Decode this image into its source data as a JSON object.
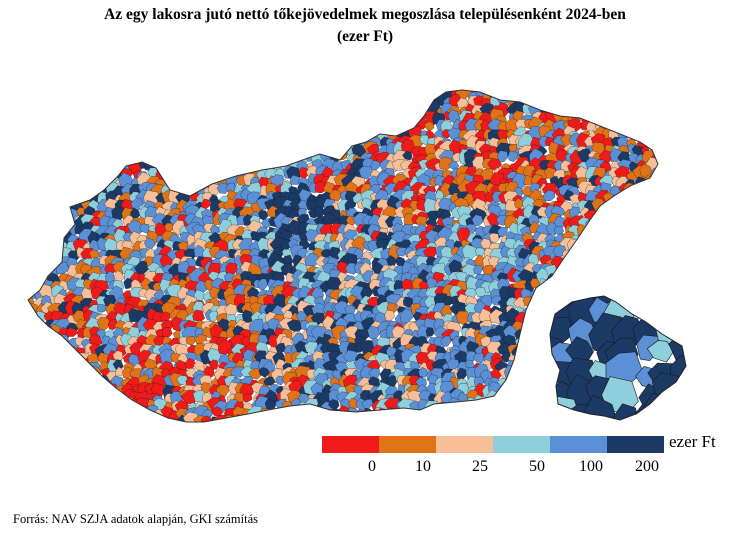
{
  "title": {
    "line1": "Az egy lakosra jutó nettó tőkejövedelmek megoszlása településenként 2024-ben",
    "line2": "(ezer Ft)"
  },
  "legend": {
    "unit": "ezer Ft",
    "ticks": [
      "0",
      "10",
      "25",
      "50",
      "100",
      "200"
    ],
    "colors": [
      "#f01a1a",
      "#e07318",
      "#f6bf97",
      "#8ecfdb",
      "#5b8fd6",
      "#1b3a66"
    ]
  },
  "source": "Forrás: NAV SZJA adatok alapján, GKI számítás",
  "map_palette": {
    "outline": "#333333",
    "red": "#f01a1a",
    "orange": "#e07318",
    "peach": "#f6bf97",
    "light_blue": "#8ecfdb",
    "blue": "#5b8fd6",
    "navy": "#1b3a66"
  }
}
